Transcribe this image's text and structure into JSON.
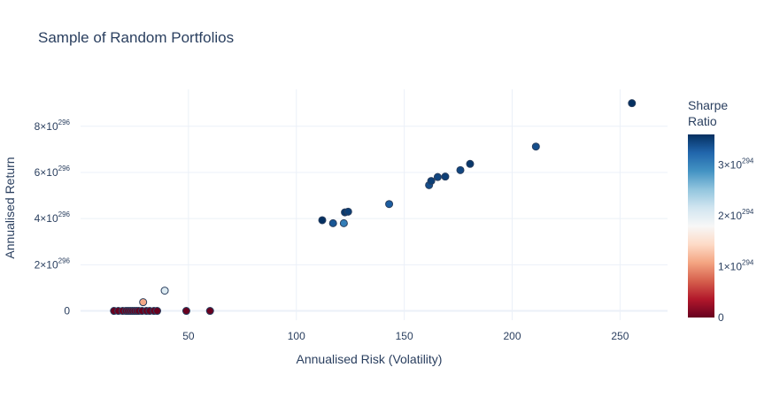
{
  "chart_data": {
    "type": "scatter",
    "title": "Sample of Random Portfolios",
    "xlabel": "Annualised Risk (Volatility)",
    "ylabel": "Annualised Return",
    "xlim": [
      0,
      272
    ],
    "ylim_exponent": 296,
    "ylim_mantissa": [
      -0.4,
      9.6
    ],
    "x_ticks": [
      {
        "value": 50,
        "label": "50"
      },
      {
        "value": 100,
        "label": "100"
      },
      {
        "value": 150,
        "label": "150"
      },
      {
        "value": 200,
        "label": "200"
      },
      {
        "value": 250,
        "label": "250"
      }
    ],
    "y_ticks": [
      {
        "mantissa": 0,
        "base": "0",
        "exp": ""
      },
      {
        "mantissa": 2,
        "base": "2×10",
        "exp": "296"
      },
      {
        "mantissa": 4,
        "base": "4×10",
        "exp": "296"
      },
      {
        "mantissa": 6,
        "base": "6×10",
        "exp": "296"
      },
      {
        "mantissa": 8,
        "base": "8×10",
        "exp": "296"
      }
    ],
    "grid": true,
    "colorbar": {
      "title_lines": [
        "Sharpe",
        "Ratio"
      ],
      "min": 0,
      "max": 3.6,
      "exponent": 294,
      "colorscale": [
        "#67001f",
        "#b2182b",
        "#d6604d",
        "#f4a582",
        "#fddbc7",
        "#f7f7f7",
        "#d1e5f0",
        "#92c5de",
        "#4393c3",
        "#2166ac",
        "#053061"
      ],
      "ticks": [
        {
          "value": 0,
          "base": "0",
          "exp": ""
        },
        {
          "value": 1,
          "base": "1×10",
          "exp": "294"
        },
        {
          "value": 2,
          "base": "2×10",
          "exp": "294"
        },
        {
          "value": 3,
          "base": "3×10",
          "exp": "294"
        }
      ]
    },
    "points": [
      {
        "x": 15.5,
        "y": 0.0,
        "c": 0.0
      },
      {
        "x": 17.5,
        "y": 0.0,
        "c": 0.0
      },
      {
        "x": 19.5,
        "y": 0.0,
        "c": 0.02
      },
      {
        "x": 21.0,
        "y": 0.0,
        "c": 0.0
      },
      {
        "x": 22.0,
        "y": 0.0,
        "c": 0.0
      },
      {
        "x": 23.0,
        "y": 0.0,
        "c": 0.01
      },
      {
        "x": 24.0,
        "y": 0.0,
        "c": 0.0
      },
      {
        "x": 25.0,
        "y": 0.0,
        "c": 0.0
      },
      {
        "x": 26.0,
        "y": 0.0,
        "c": 0.02
      },
      {
        "x": 27.0,
        "y": 0.0,
        "c": 0.0
      },
      {
        "x": 28.5,
        "y": 0.0,
        "c": 0.0
      },
      {
        "x": 29.0,
        "y": 0.38,
        "c": 1.1
      },
      {
        "x": 30.5,
        "y": 0.0,
        "c": 0.0
      },
      {
        "x": 32.0,
        "y": 0.0,
        "c": 0.0
      },
      {
        "x": 34.0,
        "y": 0.0,
        "c": 0.0
      },
      {
        "x": 35.5,
        "y": 0.0,
        "c": 0.0
      },
      {
        "x": 39.0,
        "y": 0.88,
        "c": 2.05
      },
      {
        "x": 49.0,
        "y": 0.0,
        "c": 0.0
      },
      {
        "x": 60.0,
        "y": 0.0,
        "c": 0.0
      },
      {
        "x": 112.0,
        "y": 3.93,
        "c": 3.6
      },
      {
        "x": 117.0,
        "y": 3.8,
        "c": 3.35
      },
      {
        "x": 122.0,
        "y": 3.8,
        "c": 3.05
      },
      {
        "x": 122.5,
        "y": 4.27,
        "c": 3.55
      },
      {
        "x": 124.0,
        "y": 4.3,
        "c": 3.5
      },
      {
        "x": 143.0,
        "y": 4.63,
        "c": 3.3
      },
      {
        "x": 161.5,
        "y": 5.45,
        "c": 3.4
      },
      {
        "x": 162.5,
        "y": 5.63,
        "c": 3.5
      },
      {
        "x": 165.5,
        "y": 5.8,
        "c": 3.45
      },
      {
        "x": 169.0,
        "y": 5.82,
        "c": 3.5
      },
      {
        "x": 176.0,
        "y": 6.1,
        "c": 3.45
      },
      {
        "x": 180.5,
        "y": 6.37,
        "c": 3.55
      },
      {
        "x": 211.0,
        "y": 7.12,
        "c": 3.4
      },
      {
        "x": 255.5,
        "y": 9.0,
        "c": 3.6
      }
    ]
  }
}
